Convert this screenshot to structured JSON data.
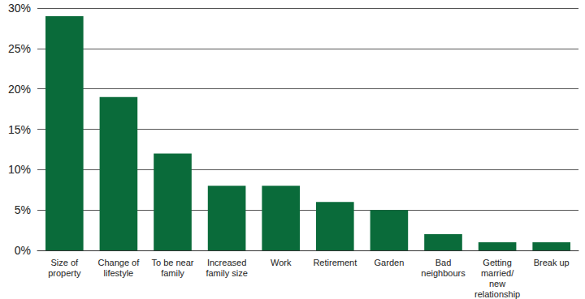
{
  "chart_data": {
    "type": "bar",
    "categories": [
      "Size of\nproperty",
      "Change of\nlifestyle",
      "To be near\nfamily",
      "Increased\nfamily size",
      "Work",
      "Retirement",
      "Garden",
      "Bad\nneighbours",
      "Getting\nmarried/\nnew\nrelationship",
      "Break up"
    ],
    "values": [
      29,
      19,
      12,
      8,
      8,
      6,
      5,
      2,
      1,
      1
    ],
    "color": "#0a6b3a",
    "ylim": [
      0,
      30
    ],
    "yticks": [
      {
        "value": 0,
        "label": "0%"
      },
      {
        "value": 5,
        "label": "5%"
      },
      {
        "value": 10,
        "label": "10%"
      },
      {
        "value": 15,
        "label": "15%"
      },
      {
        "value": 20,
        "label": "20%"
      },
      {
        "value": 25,
        "label": "25%"
      },
      {
        "value": 30,
        "label": "30%"
      }
    ],
    "grid": true
  }
}
